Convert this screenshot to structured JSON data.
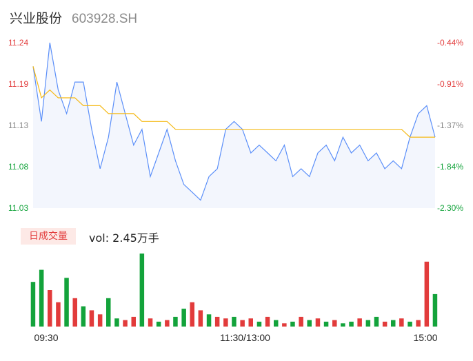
{
  "header": {
    "name": "兴业股份",
    "code": "603928.SH"
  },
  "volume_panel": {
    "tag_label": "日成交量",
    "vol_label": "vol: 2.45万手"
  },
  "colors": {
    "price_line": "#5b8ff9",
    "avg_line": "#f5b915",
    "up": "#e23b3b",
    "down": "#13a33b",
    "area_fill": "#f3f6fd"
  },
  "chart_data": [
    {
      "type": "line",
      "title": "",
      "x_ticks": [
        "09:30",
        "11:30/13:00",
        "15:00"
      ],
      "y_ticks_left": [
        "11.24",
        "11.19",
        "11.13",
        "11.08",
        "11.03"
      ],
      "y_ticks_right": [
        "-0.44%",
        "-0.91%",
        "-1.37%",
        "-1.84%",
        "-2.30%"
      ],
      "ylim": [
        11.03,
        11.24
      ],
      "x": [
        0,
        5,
        10,
        15,
        20,
        25,
        30,
        35,
        40,
        45,
        50,
        55,
        60,
        65,
        70,
        75,
        80,
        85,
        90,
        95,
        100,
        105,
        110,
        115,
        120,
        125,
        130,
        135,
        140,
        145,
        150,
        155,
        160,
        165,
        170,
        175,
        180,
        185,
        190,
        195,
        200,
        205,
        210,
        215,
        220,
        225,
        230,
        235,
        240
      ],
      "series": [
        {
          "values": [
            11.21,
            11.14,
            11.24,
            11.18,
            11.15,
            11.19,
            11.19,
            11.13,
            11.08,
            11.12,
            11.19,
            11.15,
            11.11,
            11.13,
            11.07,
            11.1,
            11.13,
            11.09,
            11.06,
            11.05,
            11.04,
            11.07,
            11.08,
            11.13,
            11.14,
            11.13,
            11.1,
            11.11,
            11.1,
            11.09,
            11.11,
            11.07,
            11.08,
            11.07,
            11.1,
            11.11,
            11.09,
            11.12,
            11.1,
            11.11,
            11.09,
            11.1,
            11.08,
            11.09,
            11.08,
            11.12,
            11.15,
            11.16,
            11.12
          ]
        },
        {
          "values": [
            11.21,
            11.17,
            11.18,
            11.17,
            11.17,
            11.17,
            11.16,
            11.16,
            11.16,
            11.15,
            11.15,
            11.15,
            11.15,
            11.14,
            11.14,
            11.14,
            11.14,
            11.13,
            11.13,
            11.13,
            11.13,
            11.13,
            11.13,
            11.13,
            11.13,
            11.13,
            11.13,
            11.13,
            11.13,
            11.13,
            11.13,
            11.13,
            11.13,
            11.13,
            11.13,
            11.13,
            11.13,
            11.13,
            11.13,
            11.13,
            11.13,
            11.13,
            11.13,
            11.13,
            11.13,
            11.12,
            11.12,
            11.12,
            11.12
          ]
        }
      ]
    },
    {
      "type": "bar",
      "title": "",
      "x": [
        0,
        5,
        10,
        15,
        20,
        25,
        30,
        35,
        40,
        45,
        50,
        55,
        60,
        65,
        70,
        75,
        80,
        85,
        90,
        95,
        100,
        105,
        110,
        115,
        120,
        125,
        130,
        135,
        140,
        145,
        150,
        155,
        160,
        165,
        170,
        175,
        180,
        185,
        190,
        195,
        200,
        205,
        210,
        215,
        220,
        225,
        230,
        235,
        240
      ],
      "series": [
        {
          "values": [
            55,
            70,
            45,
            30,
            60,
            35,
            25,
            20,
            15,
            35,
            10,
            8,
            12,
            90,
            10,
            6,
            8,
            12,
            22,
            30,
            20,
            15,
            12,
            10,
            12,
            8,
            10,
            6,
            12,
            8,
            4,
            6,
            12,
            8,
            10,
            6,
            8,
            4,
            6,
            10,
            8,
            12,
            6,
            8,
            10,
            6,
            8,
            80,
            40
          ]
        }
      ],
      "colors_per_bar": [
        "down",
        "down",
        "up",
        "up",
        "down",
        "up",
        "down",
        "up",
        "up",
        "down",
        "down",
        "up",
        "up",
        "down",
        "up",
        "down",
        "up",
        "down",
        "down",
        "up",
        "up",
        "down",
        "up",
        "up",
        "down",
        "up",
        "up",
        "down",
        "up",
        "down",
        "up",
        "down",
        "up",
        "down",
        "up",
        "down",
        "up",
        "down",
        "down",
        "up",
        "down",
        "down",
        "up",
        "down",
        "up",
        "down",
        "up",
        "up",
        "down"
      ]
    }
  ]
}
